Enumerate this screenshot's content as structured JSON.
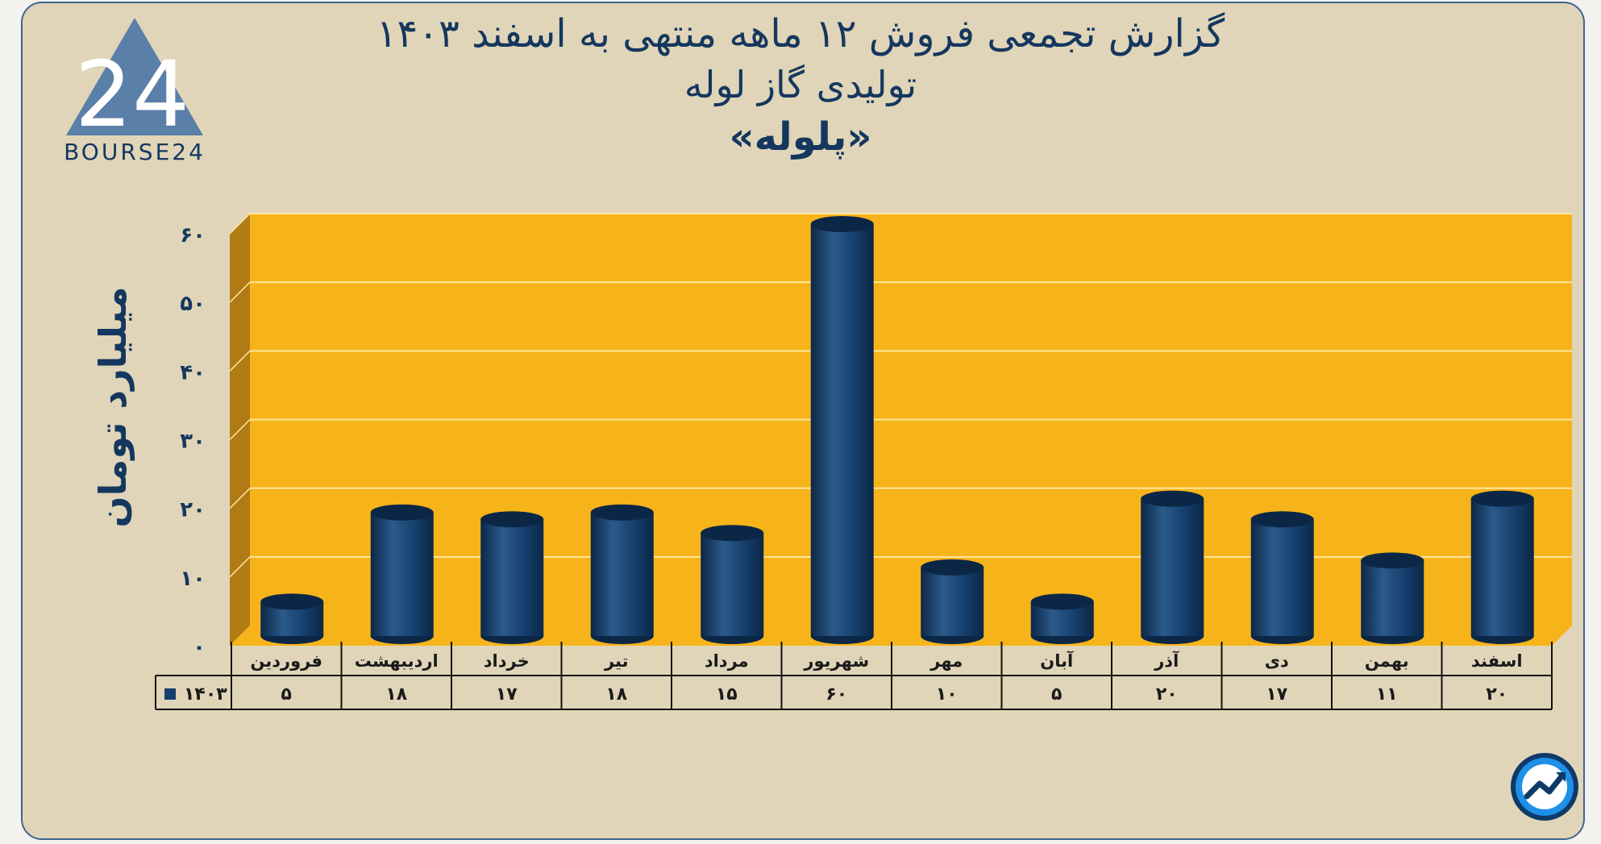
{
  "logo": {
    "brand_text": "BOURSE24",
    "mark": "24"
  },
  "badge": {
    "icon": "trend-up-icon"
  },
  "colors": {
    "plot_background": "#f7b41a",
    "plot_side_wall": "#b07a14",
    "bar": "#163f6d",
    "bar_dark": "#0c2746",
    "bar_light": "#2b5a8a",
    "text": "#14375f",
    "card_background": "#e0d5b8",
    "card_border": "#3f6690",
    "grid": "#fde6a0"
  },
  "chart_data": {
    "type": "bar",
    "title": "گزارش تجمعی فروش ۱۲ ماهه منتهی به اسفند ۱۴۰۳",
    "subtitle": "تولیدی گاز لوله",
    "symbol": "«پلوله»",
    "ylabel": "میلیارد تومان",
    "xlabel": "",
    "ylim": [
      0,
      60
    ],
    "y_ticks": [
      {
        "value": 0,
        "label": "۰"
      },
      {
        "value": 10,
        "label": "۱۰"
      },
      {
        "value": 20,
        "label": "۲۰"
      },
      {
        "value": 30,
        "label": "۳۰"
      },
      {
        "value": 40,
        "label": "۴۰"
      },
      {
        "value": 50,
        "label": "۵۰"
      },
      {
        "value": 60,
        "label": "۶۰"
      }
    ],
    "grid": true,
    "categories": [
      "فروردین",
      "اردیبهشت",
      "خرداد",
      "تیر",
      "مرداد",
      "شهریور",
      "مهر",
      "آبان",
      "آذر",
      "دی",
      "بهمن",
      "اسفند"
    ],
    "series": [
      {
        "name": "۱۴۰۳",
        "values": [
          5,
          18,
          17,
          18,
          15,
          60,
          10,
          5,
          20,
          17,
          11,
          20
        ],
        "value_labels": [
          "۵",
          "۱۸",
          "۱۷",
          "۱۸",
          "۱۵",
          "۶۰",
          "۱۰",
          "۵",
          "۲۰",
          "۱۷",
          "۱۱",
          "۲۰"
        ]
      }
    ],
    "data_table": true
  }
}
